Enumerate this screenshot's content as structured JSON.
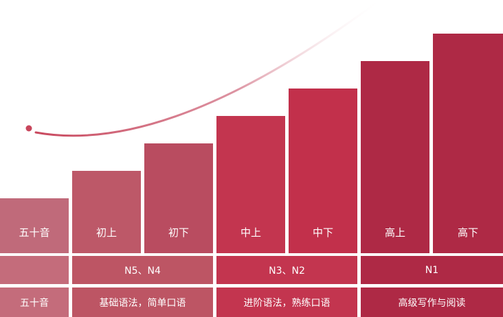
{
  "stages": [
    {
      "label": "五十音",
      "color": "#c06a7a"
    },
    {
      "label": "初上",
      "color": "#bd5868"
    },
    {
      "label": "初下",
      "color": "#b94c60"
    },
    {
      "label": "中上",
      "color": "#c3354f"
    },
    {
      "label": "中下",
      "color": "#c2304b"
    },
    {
      "label": "高上",
      "color": "#ae2945"
    },
    {
      "label": "高下",
      "color": "#ae2945"
    }
  ],
  "levels": [
    {
      "label": "",
      "color": "#c46c7b"
    },
    {
      "label": "N5、N4",
      "color": "#bd5564"
    },
    {
      "label": "N3、N2",
      "color": "#c3354f"
    },
    {
      "label": "N1",
      "color": "#ae2945"
    }
  ],
  "content": [
    {
      "label": "五十音",
      "color": "#c46c7b"
    },
    {
      "label": "基础语法，简单口语",
      "color": "#bd5564"
    },
    {
      "label": "进阶语法，熟练口语",
      "color": "#c3354f"
    },
    {
      "label": "高级写作与阅读",
      "color": "#ae2945"
    }
  ],
  "curve_color": "#c8465c"
}
